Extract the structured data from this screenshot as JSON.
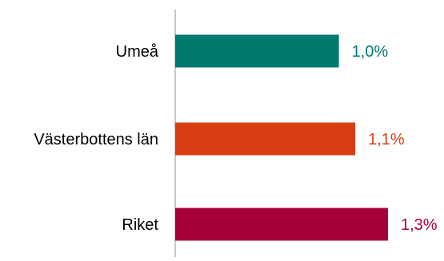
{
  "chart_data": {
    "type": "bar",
    "orientation": "horizontal",
    "categories": [
      "Umeå",
      "Västerbottens län",
      "Riket"
    ],
    "values": [
      1.0,
      1.1,
      1.3
    ],
    "value_labels": [
      "1,0%",
      "1,1%",
      "1,3%"
    ],
    "bar_colors": [
      "#007A6E",
      "#D73F12",
      "#A8003A"
    ],
    "label_colors": [
      "#007A6E",
      "#D73F12",
      "#A8003A"
    ],
    "axis_color": "#C8C8C8",
    "xlim": [
      0,
      1.3
    ],
    "grid": false,
    "title": "",
    "xlabel": "",
    "ylabel": ""
  }
}
